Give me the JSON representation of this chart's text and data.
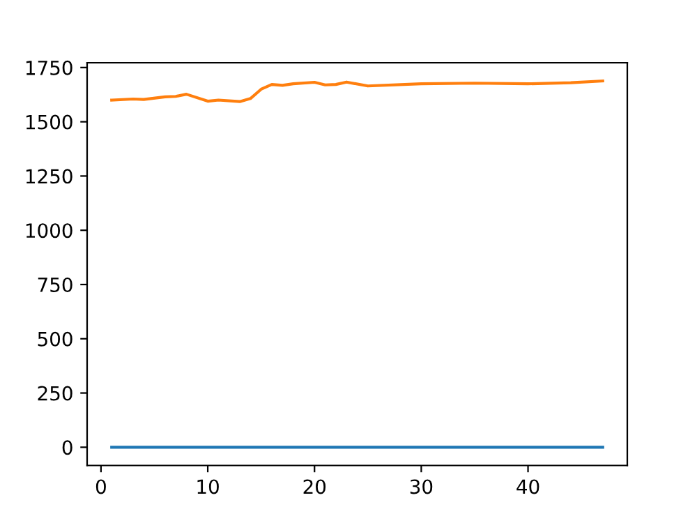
{
  "chart_data": {
    "type": "line",
    "xlim": [
      -1.3,
      49.3
    ],
    "xticks": [
      0,
      10,
      20,
      30,
      40
    ],
    "ylim": [
      -84,
      1772
    ],
    "yticks": [
      0,
      250,
      500,
      750,
      1000,
      1250,
      1500,
      1750
    ],
    "grid": false,
    "legend": false,
    "series": [
      {
        "color": "#1f77b4",
        "x": [
          1,
          47
        ],
        "values": [
          0,
          0
        ]
      },
      {
        "color": "#ff7f0e",
        "x": [
          1,
          3,
          4,
          6,
          7,
          8,
          10,
          11,
          13,
          14,
          15,
          16,
          17,
          18,
          20,
          21,
          22,
          23,
          25,
          30,
          35,
          40,
          44,
          47
        ],
        "values": [
          1600,
          1605,
          1603,
          1615,
          1617,
          1627,
          1595,
          1600,
          1593,
          1607,
          1650,
          1672,
          1668,
          1675,
          1682,
          1670,
          1672,
          1683,
          1665,
          1675,
          1678,
          1675,
          1680,
          1688
        ]
      }
    ]
  }
}
